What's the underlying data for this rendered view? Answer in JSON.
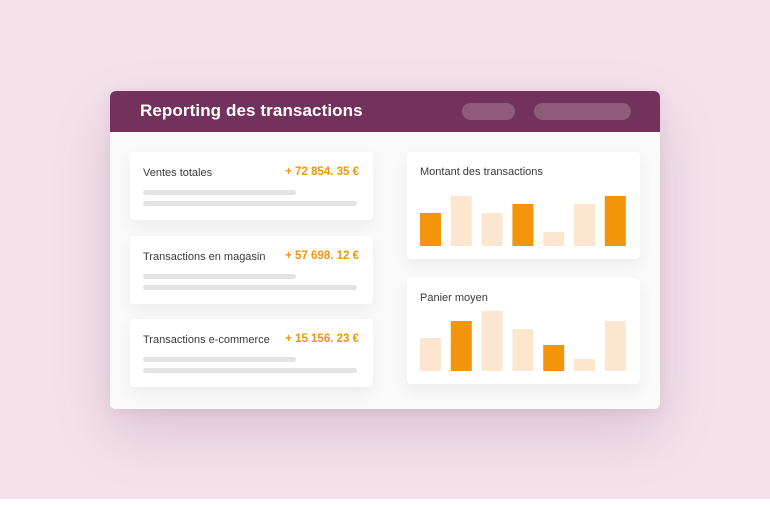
{
  "window": {
    "title": "Reporting des transactions"
  },
  "stats": [
    {
      "label": "Ventes totales",
      "value": "+ 72 854. 35 €"
    },
    {
      "label": "Transactions en magasin",
      "value": "+ 57 698. 12 €"
    },
    {
      "label": "Transactions e-commerce",
      "value": "+ 15 156. 23 €"
    }
  ],
  "colors": {
    "header": "#73325c",
    "accent": "#f2950a",
    "bar_light": "#fde6cf",
    "background": "#f3e2ec"
  },
  "chart_data": [
    {
      "type": "bar",
      "title": "Montant des transactions",
      "values": [
        33,
        50,
        33,
        42,
        14,
        42,
        50
      ],
      "highlighted": [
        true,
        false,
        false,
        true,
        false,
        false,
        true
      ],
      "ylim": [
        0,
        50
      ]
    },
    {
      "type": "bar",
      "title": "Panier moyen",
      "values": [
        33,
        50,
        60,
        42,
        26,
        12,
        50
      ],
      "highlighted": [
        false,
        true,
        false,
        false,
        true,
        false,
        false
      ],
      "ylim": [
        0,
        60
      ]
    }
  ]
}
